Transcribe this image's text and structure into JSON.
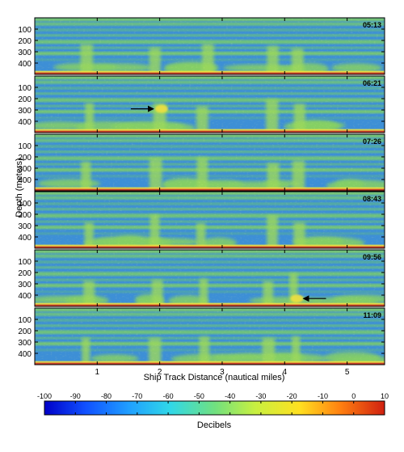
{
  "chart_data": {
    "type": "heatmap",
    "xlabel": "Ship Track Distance (nautical miles)",
    "ylabel": "Depth (meters)",
    "x_ticks": [
      1,
      2,
      3,
      4,
      5
    ],
    "y_ticks": [
      100,
      200,
      300,
      400
    ],
    "xlim": [
      0,
      5.6
    ],
    "ylim": [
      500,
      0
    ],
    "panels": [
      {
        "time": "05:13"
      },
      {
        "time": "06:21"
      },
      {
        "time": "07:26"
      },
      {
        "time": "08:43"
      },
      {
        "time": "09:56"
      },
      {
        "time": "11:09"
      }
    ],
    "annotations": [
      {
        "panel": 1,
        "type": "arrow",
        "x": 1.9,
        "depth": 290,
        "pointing": "right"
      },
      {
        "panel": 4,
        "type": "arrow",
        "x": 4.3,
        "depth": 430,
        "pointing": "left"
      }
    ],
    "colorbar": {
      "label": "Decibels",
      "range": [
        -100,
        10
      ],
      "ticks": [
        -100,
        -90,
        -80,
        -70,
        -60,
        -50,
        -40,
        -30,
        -20,
        -10,
        0,
        10
      ],
      "colormap": "jet"
    },
    "colors": {
      "background_blue": "#3d8fd6",
      "band_green": "#7cc96b",
      "bottom_red": "#c8402a",
      "highlight_yellow": "#f0e040"
    }
  }
}
